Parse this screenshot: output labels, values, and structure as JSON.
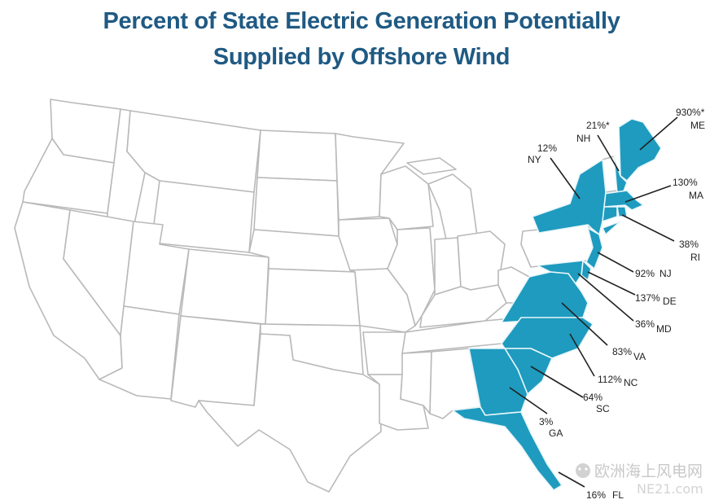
{
  "title_line1": "Percent of State Electric Generation Potentially",
  "title_line2": "Supplied by Offshore Wind",
  "colors": {
    "title": "#1f5a83",
    "highlight": "#1e9bbf",
    "blank_state": "#ffffff",
    "border": "#b9b9b9"
  },
  "states": [
    {
      "abbr": "ME",
      "value": "930%*"
    },
    {
      "abbr": "NH",
      "value": "21%*"
    },
    {
      "abbr": "NY",
      "value": "12%"
    },
    {
      "abbr": "MA",
      "value": "130%"
    },
    {
      "abbr": "RI",
      "value": "38%"
    },
    {
      "abbr": "NJ",
      "value": "92%"
    },
    {
      "abbr": "DE",
      "value": "137%"
    },
    {
      "abbr": "MD",
      "value": "36%"
    },
    {
      "abbr": "VA",
      "value": "83%"
    },
    {
      "abbr": "NC",
      "value": "112%"
    },
    {
      "abbr": "SC",
      "value": "64%"
    },
    {
      "abbr": "GA",
      "value": "3%"
    },
    {
      "abbr": "FL",
      "value": "16%"
    }
  ],
  "watermark": {
    "line1": "欧洲海上风电网",
    "line2": "NE21.com"
  }
}
